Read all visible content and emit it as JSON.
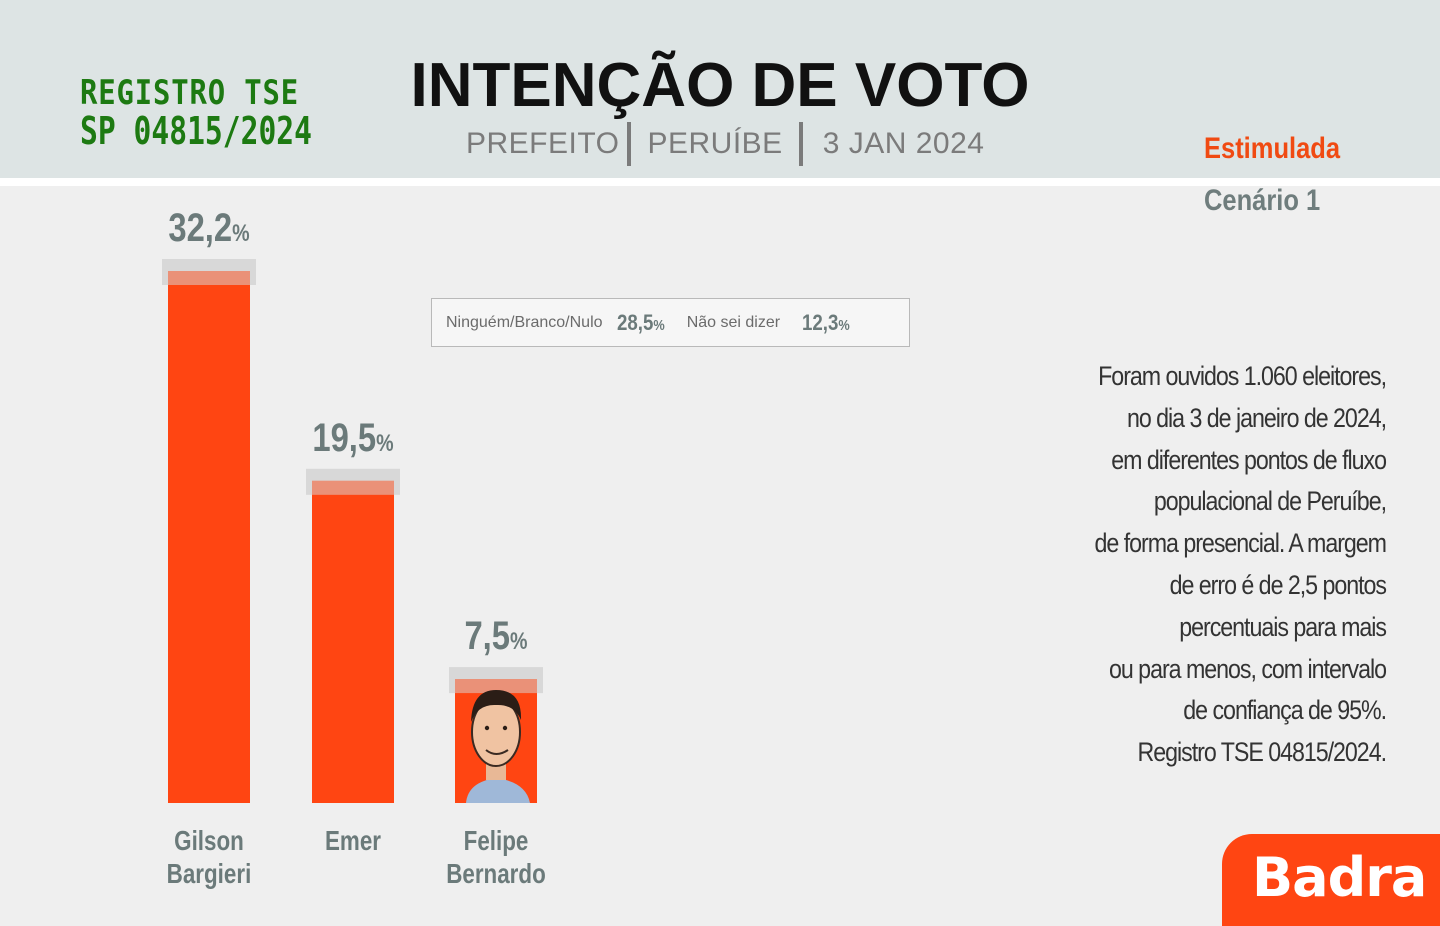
{
  "header": {
    "stamp_line1": "REGISTRO TSE",
    "stamp_line2": "SP 04815/2024",
    "title": "INTENÇÃO DE VOTO",
    "subtitle_office": "PREFEITO",
    "subtitle_city": "PERUÍBE",
    "subtitle_date": "3 JAN 2024"
  },
  "scenario": {
    "type": "Estimulada",
    "name": "Cenário 1"
  },
  "others": {
    "none_label": "Ninguém/Branco/Nulo",
    "none_value": "28,5",
    "dontknow_label": "Não sei dizer",
    "dontknow_value": "12,3",
    "pct_sign": "%"
  },
  "note_lines": [
    "Foram ouvidos 1.060 eleitores,",
    "no dia 3 de janeiro de 2024,",
    "em diferentes pontos de fluxo",
    "populacional de Peruíbe,",
    "de forma presencial. A margem",
    "de erro é de 2,5 pontos",
    "percentuais para mais",
    "ou para menos,  com intervalo",
    "de confiança de 95%.",
    "Registro TSE 04815/2024."
  ],
  "brand": {
    "name": "Badra"
  },
  "colors": {
    "bar": "#ff4512",
    "bar_cap": "#d8d8d8",
    "value_text": "#6b7a7a",
    "accent": "#f04a12",
    "stamp": "#1d7a12"
  },
  "chart_data": {
    "type": "bar",
    "categories": [
      "Gilson Bargieri",
      "Emer",
      "Felipe Bernardo"
    ],
    "category_lines": [
      [
        "Gilson",
        "Bargieri"
      ],
      [
        "Emer"
      ],
      [
        "Felipe",
        "Bernardo"
      ]
    ],
    "values": [
      32.2,
      19.5,
      7.5
    ],
    "value_labels": [
      "32,2",
      "19,5",
      "7,5"
    ],
    "unit": "%",
    "title": "INTENÇÃO DE VOTO",
    "xlabel": "",
    "ylabel": "",
    "ylim": [
      0,
      32.2
    ],
    "grid": false
  }
}
